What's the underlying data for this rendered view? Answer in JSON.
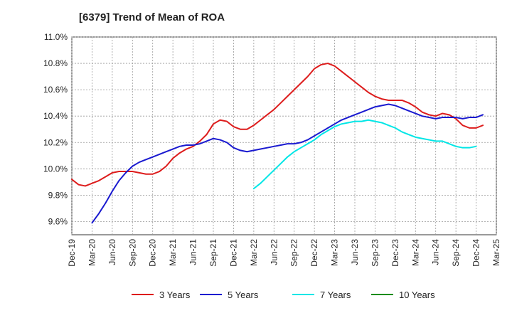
{
  "chart_data": {
    "type": "line",
    "title": "[6379]  Trend of Mean of ROA",
    "xlabel": "",
    "ylabel": "",
    "ylim": [
      9.5,
      11.0
    ],
    "yticks": [
      9.6,
      9.8,
      10.0,
      10.2,
      10.4,
      10.6,
      10.8,
      11.0
    ],
    "ytick_labels": [
      "9.6%",
      "9.8%",
      "10.0%",
      "10.2%",
      "10.4%",
      "10.6%",
      "10.8%",
      "11.0%"
    ],
    "xticks": [
      "Dec-19",
      "Mar-20",
      "Jun-20",
      "Sep-20",
      "Dec-20",
      "Mar-21",
      "Jun-21",
      "Sep-21",
      "Dec-21",
      "Mar-22",
      "Jun-22",
      "Sep-22",
      "Dec-22",
      "Mar-23",
      "Jun-23",
      "Sep-23",
      "Dec-23",
      "Mar-24",
      "Jun-24",
      "Sep-24",
      "Dec-24",
      "Mar-25"
    ],
    "grid": true,
    "legend_position": "bottom",
    "series": [
      {
        "name": "3 Years",
        "color": "#dd1c1c",
        "start_month": 0,
        "values": [
          9.92,
          9.88,
          9.87,
          9.89,
          9.91,
          9.94,
          9.97,
          9.98,
          9.98,
          9.98,
          9.97,
          9.96,
          9.96,
          9.98,
          10.02,
          10.08,
          10.12,
          10.15,
          10.17,
          10.21,
          10.26,
          10.34,
          10.37,
          10.36,
          10.32,
          10.3,
          10.3,
          10.33,
          10.37,
          10.41,
          10.45,
          10.5,
          10.55,
          10.6,
          10.65,
          10.7,
          10.76,
          10.79,
          10.8,
          10.78,
          10.74,
          10.7,
          10.66,
          10.62,
          10.58,
          10.55,
          10.53,
          10.52,
          10.52,
          10.52,
          10.5,
          10.47,
          10.43,
          10.41,
          10.4,
          10.42,
          10.41,
          10.38,
          10.33,
          10.31,
          10.31,
          10.33
        ]
      },
      {
        "name": "5 Years",
        "color": "#1a1ad0",
        "start_month": 3,
        "values": [
          9.59,
          9.66,
          9.74,
          9.83,
          9.91,
          9.97,
          10.02,
          10.05,
          10.07,
          10.09,
          10.11,
          10.13,
          10.15,
          10.17,
          10.18,
          10.18,
          10.19,
          10.21,
          10.23,
          10.22,
          10.2,
          10.16,
          10.14,
          10.13,
          10.14,
          10.15,
          10.16,
          10.17,
          10.18,
          10.19,
          10.19,
          10.2,
          10.22,
          10.25,
          10.28,
          10.31,
          10.34,
          10.37,
          10.39,
          10.41,
          10.43,
          10.45,
          10.47,
          10.48,
          10.49,
          10.48,
          10.46,
          10.44,
          10.42,
          10.4,
          10.39,
          10.38,
          10.39,
          10.39,
          10.39,
          10.38,
          10.39,
          10.39,
          10.41
        ]
      },
      {
        "name": "7 Years",
        "color": "#00e6e6",
        "start_month": 27,
        "values": [
          9.85,
          9.89,
          9.94,
          9.99,
          10.04,
          10.09,
          10.13,
          10.16,
          10.19,
          10.22,
          10.26,
          10.29,
          10.32,
          10.34,
          10.35,
          10.36,
          10.36,
          10.37,
          10.36,
          10.35,
          10.33,
          10.31,
          10.28,
          10.26,
          10.24,
          10.23,
          10.22,
          10.21,
          10.21,
          10.19,
          10.17,
          10.16,
          10.16,
          10.17
        ]
      },
      {
        "name": "10 Years",
        "color": "#1b8c1b",
        "start_month": 0,
        "values": []
      }
    ]
  }
}
